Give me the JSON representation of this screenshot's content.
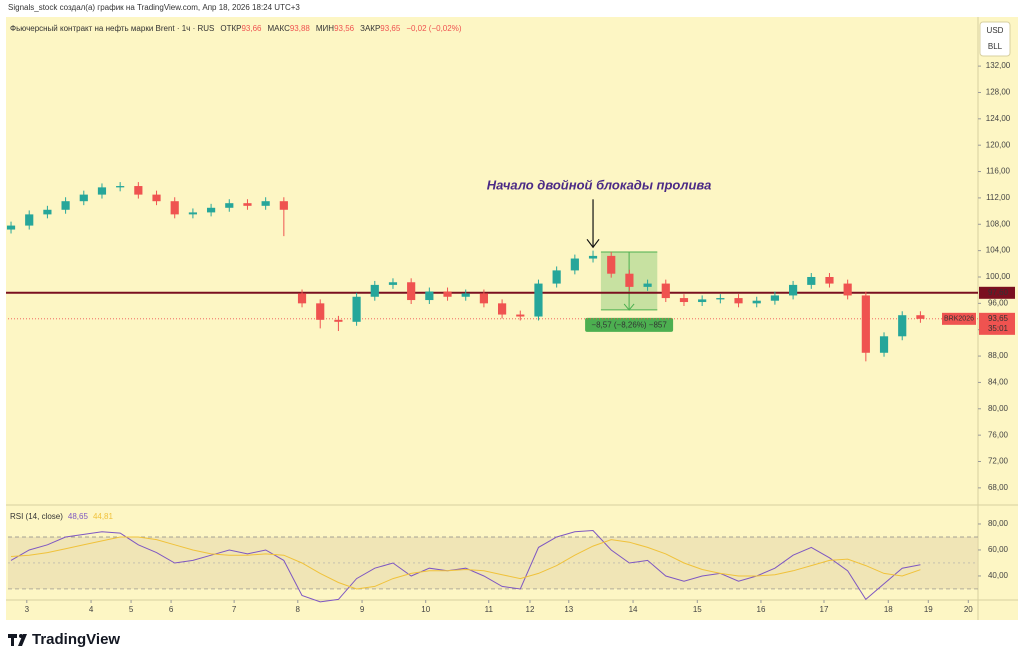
{
  "header": {
    "credit": "Signals_stock создал(а) график на TradingView.com, Апр 18, 2026 18:24 UTC+3"
  },
  "footer": {
    "brand": "TradingView"
  },
  "chart_data": [
    {
      "type": "candlestick",
      "title": "Фьючерсный контракт на нефть марки Brent · 1ч · RUS",
      "ohlc": [
        {
          "label": "ОТКР",
          "value": "93,66"
        },
        {
          "label": "МАКС",
          "value": "93,88"
        },
        {
          "label": "МИН",
          "value": "93,56"
        },
        {
          "label": "ЗАКР",
          "value": "93,65"
        }
      ],
      "change": "−0,02 (−0,02%)",
      "currency": "USD",
      "unit": "BLL",
      "up_color": "#26a69a",
      "down_color": "#ef5350",
      "grid": false,
      "xlim": [
        0,
        160
      ],
      "ylim": [
        65.4,
        139.3
      ],
      "yticks": [
        {
          "value": 68,
          "label": "68,00"
        },
        {
          "value": 72,
          "label": "72,00"
        },
        {
          "value": 76,
          "label": "76,00"
        },
        {
          "value": 80,
          "label": "80,00"
        },
        {
          "value": 84,
          "label": "84,00"
        },
        {
          "value": 88,
          "label": "88,00"
        },
        {
          "value": 92,
          "label": "92,00"
        },
        {
          "value": 96,
          "label": "96,00"
        },
        {
          "value": 100,
          "label": "100,00"
        },
        {
          "value": 104,
          "label": "104,00"
        },
        {
          "value": 108,
          "label": "108,00"
        },
        {
          "value": 112,
          "label": "112,00"
        },
        {
          "value": 116,
          "label": "116,00"
        },
        {
          "value": 120,
          "label": "120,00"
        },
        {
          "value": 124,
          "label": "124,00"
        },
        {
          "value": 128,
          "label": "128,00"
        },
        {
          "value": 132,
          "label": "132,00"
        }
      ],
      "xticks": [
        {
          "value": 3.1,
          "label": "3"
        },
        {
          "value": 13.7,
          "label": "4"
        },
        {
          "value": 20.3,
          "label": "5"
        },
        {
          "value": 26.9,
          "label": "6"
        },
        {
          "value": 37.3,
          "label": "7"
        },
        {
          "value": 47.8,
          "label": "8"
        },
        {
          "value": 58.4,
          "label": "9"
        },
        {
          "value": 68.9,
          "label": "10"
        },
        {
          "value": 79.3,
          "label": "11"
        },
        {
          "value": 86.1,
          "label": "12"
        },
        {
          "value": 92.5,
          "label": "13"
        },
        {
          "value": 103.1,
          "label": "14"
        },
        {
          "value": 113.7,
          "label": "15"
        },
        {
          "value": 124.2,
          "label": "16"
        },
        {
          "value": 134.6,
          "label": "17"
        },
        {
          "value": 145.2,
          "label": "18"
        },
        {
          "value": 151.8,
          "label": "19"
        },
        {
          "value": 158.4,
          "label": "20"
        }
      ],
      "x": [
        0.5,
        3.5,
        6.5,
        9.5,
        12.5,
        15.5,
        18.5,
        21.5,
        24.5,
        27.5,
        30.5,
        33.5,
        36.5,
        39.5,
        42.5,
        45.5,
        48.5,
        51.5,
        54.5,
        57.5,
        60.5,
        63.5,
        66.5,
        69.5,
        72.5,
        75.5,
        78.5,
        81.5,
        84.5,
        87.5,
        90.5,
        93.5,
        96.5,
        99.5,
        102.5,
        105.5,
        108.5,
        111.5,
        114.5,
        117.5,
        120.5,
        123.5,
        126.5,
        129.5,
        132.5,
        135.5,
        138.5,
        141.5,
        144.5,
        147.5,
        150.5
      ],
      "open": [
        107.2,
        107.8,
        109.5,
        110.2,
        111.5,
        112.5,
        113.6,
        113.8,
        112.5,
        111.5,
        109.5,
        109.8,
        110.5,
        111.2,
        110.8,
        111.5,
        97.5,
        96.0,
        93.5,
        93.2,
        97.0,
        98.8,
        99.2,
        96.5,
        97.8,
        97.0,
        97.5,
        96.0,
        94.3,
        94.0,
        99.0,
        101.0,
        102.8,
        103.2,
        100.5,
        98.5,
        99.0,
        96.8,
        96.2,
        96.6,
        96.8,
        96.0,
        96.4,
        97.2,
        98.8,
        100.0,
        99.0,
        97.2,
        88.5,
        91.0,
        94.2
      ],
      "high": [
        108.4,
        110.1,
        110.8,
        112.1,
        113.1,
        114.2,
        114.4,
        114.4,
        113.1,
        112.1,
        110.4,
        111.1,
        111.8,
        111.8,
        112.1,
        112.1,
        98.1,
        96.6,
        94.1,
        97.6,
        99.4,
        99.8,
        99.8,
        98.4,
        98.4,
        98.1,
        98.1,
        96.6,
        94.9,
        99.6,
        101.6,
        103.4,
        104.0,
        103.8,
        101.1,
        99.6,
        99.6,
        97.4,
        97.2,
        97.4,
        97.4,
        97.0,
        97.8,
        99.4,
        100.6,
        100.6,
        99.6,
        97.8,
        91.6,
        94.8,
        94.8
      ],
      "low": [
        106.6,
        107.2,
        108.9,
        109.6,
        110.9,
        111.9,
        113.0,
        111.9,
        110.9,
        108.9,
        108.9,
        109.2,
        109.9,
        110.2,
        110.2,
        106.2,
        95.4,
        92.2,
        91.8,
        92.6,
        96.4,
        98.2,
        95.9,
        95.9,
        96.4,
        96.4,
        95.4,
        93.7,
        93.4,
        93.4,
        98.4,
        100.4,
        102.2,
        99.9,
        97.9,
        97.9,
        96.2,
        95.6,
        95.6,
        96.0,
        95.4,
        95.4,
        95.8,
        96.6,
        98.2,
        98.4,
        96.6,
        87.2,
        87.9,
        90.4,
        93.05
      ],
      "close": [
        107.8,
        109.5,
        110.2,
        111.5,
        112.5,
        113.6,
        113.8,
        112.5,
        111.5,
        109.5,
        109.8,
        110.5,
        111.2,
        110.8,
        111.5,
        110.2,
        96.0,
        93.5,
        93.2,
        97.0,
        98.8,
        99.2,
        96.5,
        97.8,
        97.0,
        97.5,
        96.0,
        94.3,
        94.0,
        99.0,
        101.0,
        102.8,
        103.2,
        100.5,
        98.5,
        99.0,
        96.8,
        96.2,
        96.6,
        96.8,
        96.0,
        96.4,
        97.2,
        98.8,
        100.0,
        99.0,
        97.2,
        88.5,
        91.0,
        94.2,
        93.65
      ],
      "level": {
        "value": 97.6,
        "label": "97,60",
        "color": "#7a1020"
      },
      "last": {
        "name": "BRK2026",
        "value": 93.65,
        "value_label": "93,65",
        "countdown": "35:01"
      },
      "measure": {
        "x": [
          97.8,
          107.1
        ],
        "y": [
          103.8,
          95.0
        ],
        "label": "−8,57 (−8,26%) −857",
        "color": "#4caf50"
      },
      "annotation": {
        "text": "Начало двойной блокады пролива",
        "x": 96.5,
        "y": 104.2
      }
    },
    {
      "type": "line",
      "xlim": [
        0,
        160
      ],
      "ylim": [
        21.5,
        94.6
      ],
      "yticks": [
        {
          "value": 40,
          "label": "40,00"
        },
        {
          "value": 60,
          "label": "60,00"
        },
        {
          "value": 80,
          "label": "80,00"
        }
      ],
      "band": [
        30,
        70
      ],
      "mid": 50,
      "x": [
        0.5,
        3.5,
        6.5,
        9.5,
        12.5,
        15.5,
        18.5,
        21.5,
        24.5,
        27.5,
        30.5,
        33.5,
        36.5,
        39.5,
        42.5,
        45.5,
        48.5,
        51.5,
        54.5,
        57.5,
        60.5,
        63.5,
        66.5,
        69.5,
        72.5,
        75.5,
        78.5,
        81.5,
        84.5,
        87.5,
        90.5,
        93.5,
        96.5,
        99.5,
        102.5,
        105.5,
        108.5,
        111.5,
        114.5,
        117.5,
        120.5,
        123.5,
        126.5,
        129.5,
        132.5,
        135.5,
        138.5,
        141.5,
        144.5,
        147.5,
        150.5
      ],
      "series": [
        {
          "name": "RSI (14, close)",
          "color": "#7e57c2",
          "value_label": "48,65",
          "values": [
            52,
            60,
            64,
            70,
            72,
            74,
            73,
            64,
            58,
            50,
            52,
            56,
            60,
            57,
            60,
            52,
            25,
            20,
            22,
            38,
            46,
            50,
            40,
            46,
            44,
            46,
            40,
            32,
            30,
            62,
            70,
            74,
            75,
            60,
            50,
            52,
            40,
            36,
            40,
            42,
            36,
            40,
            46,
            56,
            62,
            54,
            44,
            22,
            34,
            46,
            48.65
          ]
        },
        {
          "color": "#f0c23b",
          "value_label": "44,81",
          "values": [
            55,
            56,
            58,
            61,
            64,
            67,
            70,
            70,
            68,
            64,
            60,
            57,
            56,
            56,
            57,
            56,
            50,
            42,
            35,
            30,
            32,
            38,
            42,
            44,
            44,
            45,
            44,
            41,
            38,
            42,
            48,
            56,
            63,
            68,
            66,
            62,
            57,
            50,
            45,
            42,
            40,
            40,
            41,
            44,
            48,
            52,
            53,
            48,
            42,
            40,
            44.81
          ]
        }
      ]
    }
  ]
}
